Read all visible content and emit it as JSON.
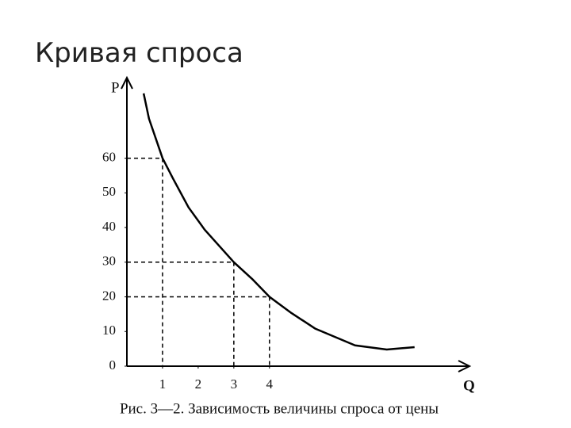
{
  "slide_title": "Кривая спроса",
  "chart_data": {
    "type": "line",
    "caption": "Рис. 3—2. Зависимость величины спроса от цены",
    "xlabel": "Q",
    "ylabel": "P",
    "x": [
      0.47,
      0.62,
      1,
      1.29,
      1.73,
      2.18,
      3,
      3.51,
      4,
      4.62,
      5.29,
      6.4,
      7.29,
      8.07
    ],
    "values": [
      78.7,
      71.4,
      60,
      54.2,
      45.8,
      39.4,
      30,
      25.2,
      20,
      15.3,
      10.8,
      6,
      4.8,
      5.5
    ],
    "color": "#000000",
    "guides": {
      "x": [
        1,
        3,
        4
      ],
      "y": [
        60,
        30,
        20
      ]
    },
    "xlim": [
      0,
      9.5
    ],
    "ylim": [
      0,
      83
    ],
    "xticks": [
      1,
      2,
      3,
      4
    ],
    "yticks": [
      0,
      10,
      20,
      30,
      40,
      50,
      60
    ]
  }
}
